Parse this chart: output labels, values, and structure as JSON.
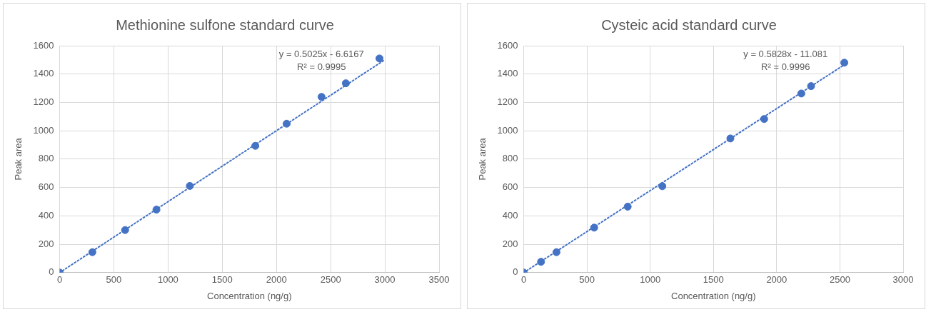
{
  "chart_data": [
    {
      "type": "scatter",
      "title": "Methionine sulfone standard curve",
      "xlabel": "Concentration (ng/g)",
      "ylabel": "Peak area",
      "xlim": [
        0,
        3500
      ],
      "xticks": [
        0,
        500,
        1000,
        1500,
        2000,
        2500,
        3000,
        3500
      ],
      "ylim": [
        0,
        1600
      ],
      "yticks": [
        0,
        200,
        400,
        600,
        800,
        1000,
        1200,
        1400,
        1600
      ],
      "grid": true,
      "marker": "circle",
      "series": [
        {
          "color": "#4472c4",
          "x": [
            0,
            302,
            604,
            893,
            1201,
            1805,
            2094,
            2416,
            2640,
            2950
          ],
          "values": [
            0,
            144,
            300,
            444,
            611,
            894,
            1050,
            1239,
            1335,
            1510
          ]
        },
        {
          "type": "line",
          "line_style": "dotted",
          "marker": "none",
          "color": "#4472c4",
          "x": [
            0,
            2990
          ],
          "values": [
            0,
            1496
          ]
        }
      ],
      "annotations": [
        "y = 0.5025x - 6.6167",
        "R² = 0.9995"
      ]
    },
    {
      "type": "scatter",
      "title": "Cysteic acid standard curve",
      "xlabel": "Concentration (ng/g)",
      "ylabel": "Peak area",
      "xlim": [
        0,
        3000
      ],
      "xticks": [
        0,
        500,
        1000,
        1500,
        2000,
        2500,
        3000
      ],
      "ylim": [
        0,
        1600
      ],
      "yticks": [
        0,
        200,
        400,
        600,
        800,
        1000,
        1200,
        1400,
        1600
      ],
      "grid": true,
      "marker": "circle",
      "series": [
        {
          "color": "#4472c4",
          "x": [
            0,
            137,
            259,
            557,
            822,
            1096,
            1634,
            1901,
            2195,
            2272,
            2535
          ],
          "values": [
            0,
            76,
            144,
            317,
            465,
            609,
            946,
            1083,
            1263,
            1315,
            1480
          ]
        },
        {
          "type": "line",
          "line_style": "dotted",
          "marker": "none",
          "color": "#4472c4",
          "x": [
            0,
            2535
          ],
          "values": [
            0,
            1466
          ]
        }
      ],
      "annotations": [
        "y = 0.5828x - 11.081",
        "R² = 0.9996"
      ]
    }
  ]
}
